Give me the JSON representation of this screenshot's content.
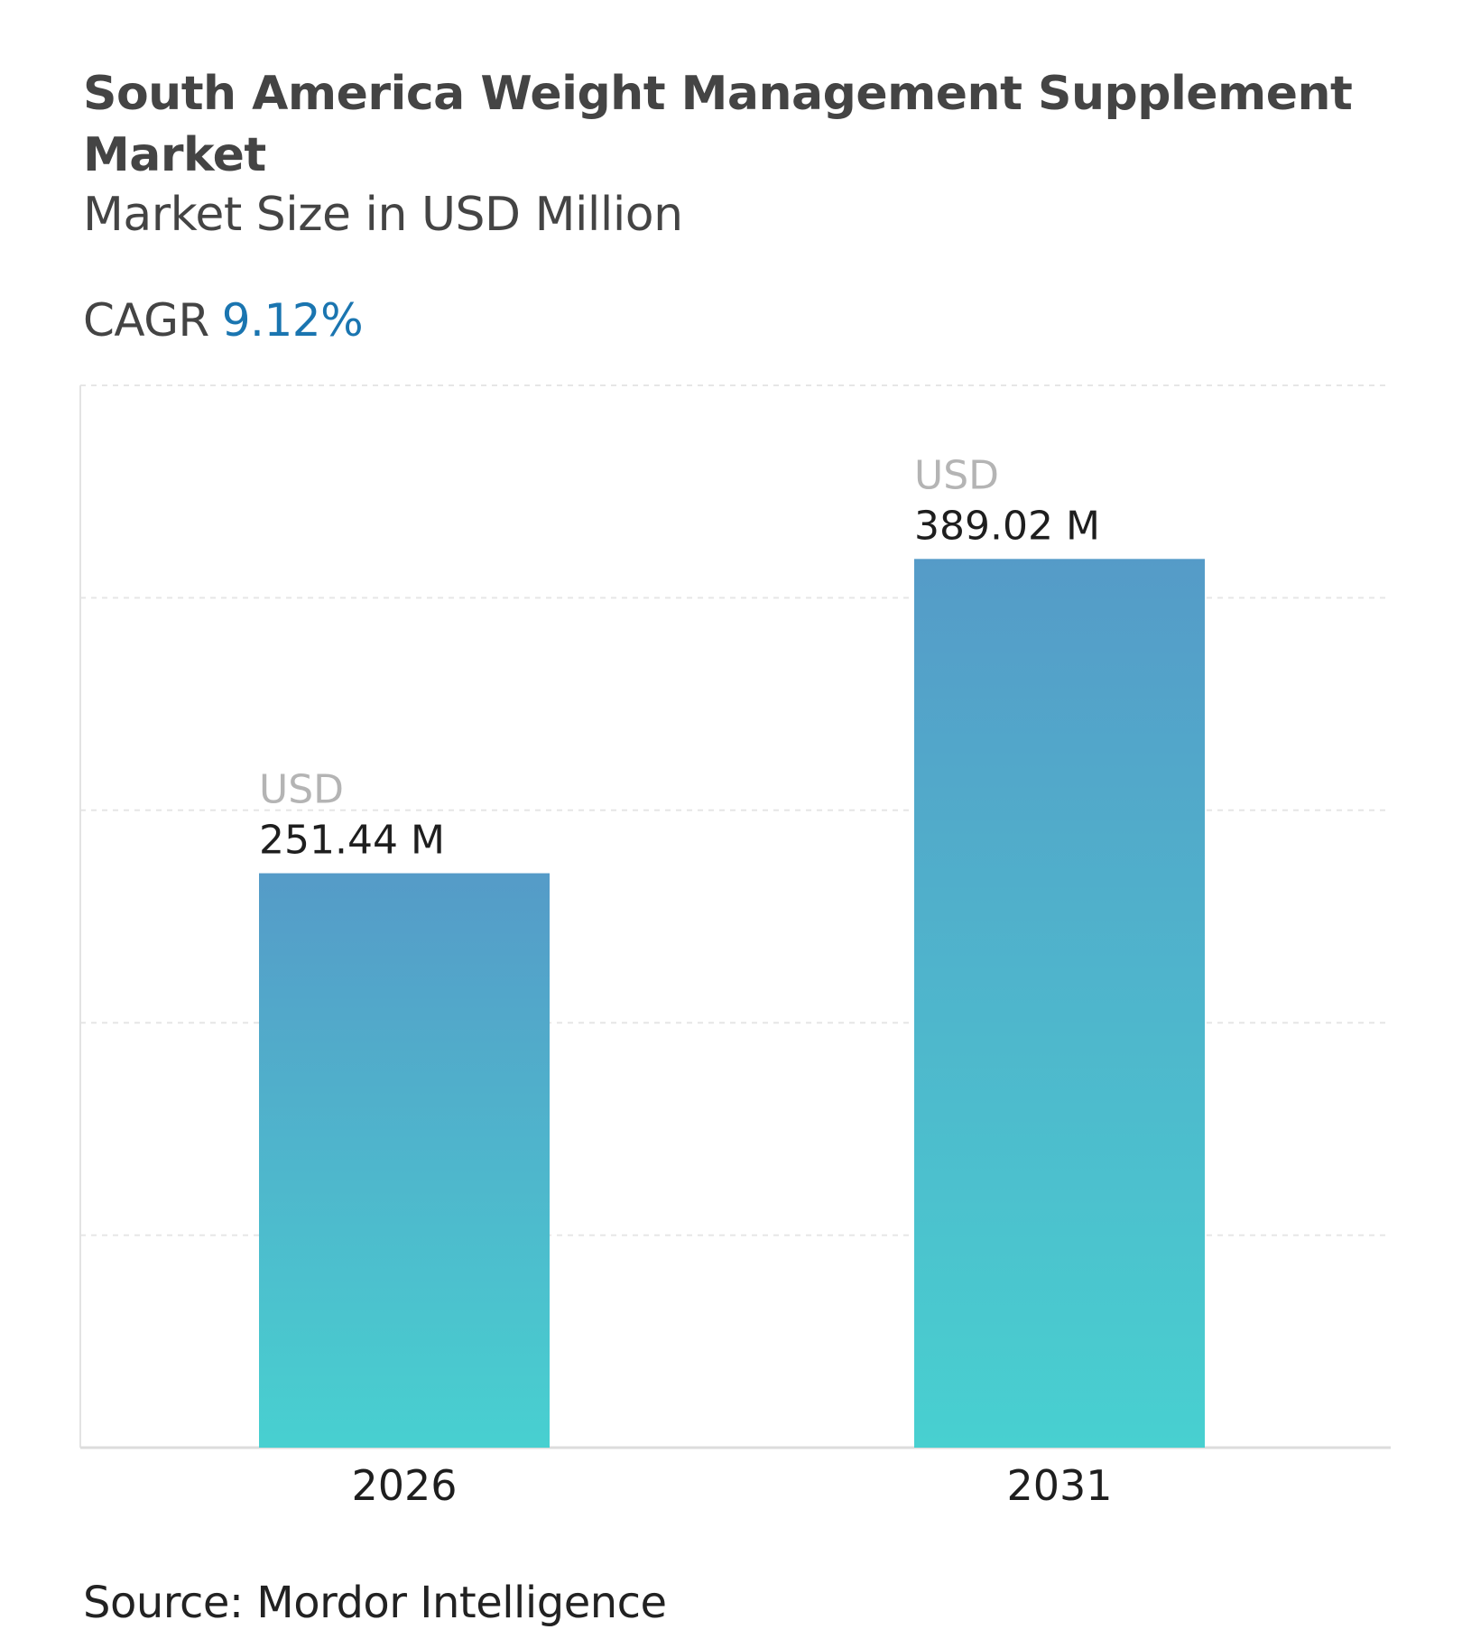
{
  "header": {
    "title": "South America Weight Management Supplement Market",
    "subtitle": "Market Size in USD Million",
    "cagr_label": "CAGR",
    "cagr_value": "9.12%"
  },
  "footer": {
    "source": "Source: Mordor Intelligence"
  },
  "colors": {
    "title": "#444444",
    "cagr_value": "#1a75b0",
    "bar_top": "#559bc8",
    "bar_bottom": "#48d0d0",
    "label_currency": "#b4b4b4"
  },
  "chart_data": {
    "type": "bar",
    "title": "South America Weight Management Supplement Market",
    "subtitle": "Market Size in USD Million",
    "categories": [
      "2026",
      "2031"
    ],
    "values": [
      251.44,
      389.02
    ],
    "data_labels": [
      {
        "prefix": "USD",
        "text": "251.44 M"
      },
      {
        "prefix": "USD",
        "text": "389.02 M"
      }
    ],
    "ylim": [
      0,
      465
    ],
    "grid": true,
    "y_tick_labels_visible": false,
    "legend": "none"
  }
}
